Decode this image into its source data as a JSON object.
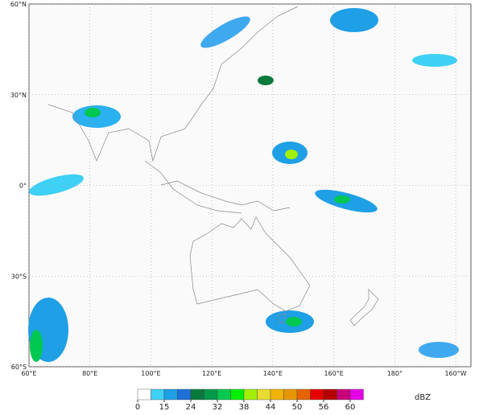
{
  "map": {
    "lat_ticks": [
      {
        "value": 60,
        "label": "60°N"
      },
      {
        "value": 30,
        "label": "30°N"
      },
      {
        "value": 0,
        "label": "0°"
      },
      {
        "value": -30,
        "label": "30°S"
      },
      {
        "value": -60,
        "label": "60°S"
      }
    ],
    "lon_ticks": [
      {
        "value": 60,
        "label": "60°E"
      },
      {
        "value": 80,
        "label": "80°E"
      },
      {
        "value": 100,
        "label": "100°E"
      },
      {
        "value": 120,
        "label": "120°E"
      },
      {
        "value": 140,
        "label": "140°E"
      },
      {
        "value": 160,
        "label": "160°E"
      },
      {
        "value": 180,
        "label": "180°"
      },
      {
        "value": 200,
        "label": "160°W"
      }
    ],
    "lon_range": [
      60,
      205
    ],
    "lat_range": [
      -60,
      60
    ]
  },
  "colorbar": {
    "unit": "dBZ",
    "ticks": [
      0,
      15,
      24,
      32,
      38,
      44,
      50,
      56,
      60
    ],
    "colors": [
      "#ffffff",
      "#3fd0f5",
      "#1e9fe6",
      "#1e6fd6",
      "#0a7a3c",
      "#009a4a",
      "#00c850",
      "#00f000",
      "#a0f000",
      "#e6dc32",
      "#f0b400",
      "#e69600",
      "#e66400",
      "#e60000",
      "#b40000",
      "#c8007a",
      "#e600e6"
    ]
  }
}
